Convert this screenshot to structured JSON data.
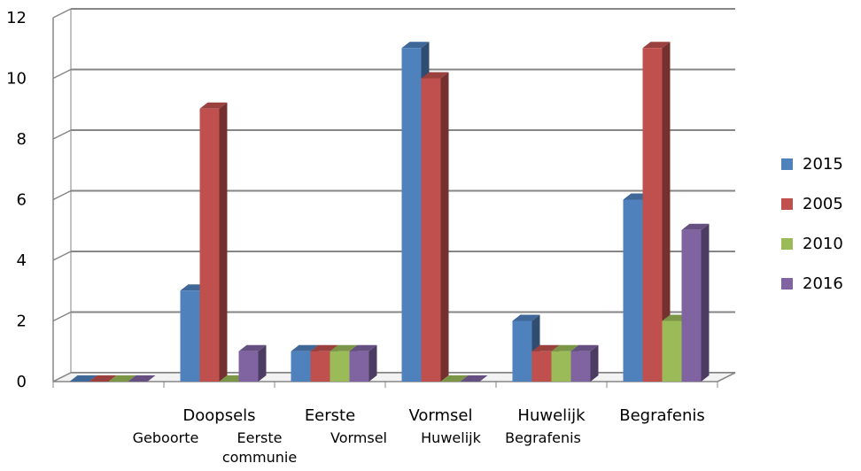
{
  "chart_data": {
    "type": "bar",
    "title": "",
    "xlabel": "",
    "ylabel": "",
    "ylim": [
      0,
      12
    ],
    "yticks": [
      "0",
      "2",
      "4",
      "6",
      "8",
      "10",
      "12"
    ],
    "grid": true,
    "legend_position": "right",
    "categories": [
      "",
      "Doopsels",
      "Eerste",
      "Vormsel",
      "Huwelijk",
      "Begrafenis"
    ],
    "secondary_categories": [
      "Geboorte",
      "Eerste communie",
      "Vormsel",
      "Huwelijk",
      "Begrafenis"
    ],
    "series": [
      {
        "name": "2015",
        "color": "#4f81bd",
        "values": [
          0,
          3,
          1,
          11,
          2,
          6
        ]
      },
      {
        "name": "2005",
        "color": "#c0504d",
        "values": [
          0,
          9,
          1,
          10,
          1,
          11
        ]
      },
      {
        "name": "2010",
        "color": "#9bbb59",
        "values": [
          0,
          0,
          1,
          0,
          1,
          2
        ]
      },
      {
        "name": "2016",
        "color": "#8064a2",
        "values": [
          0,
          1,
          1,
          0,
          1,
          5
        ]
      }
    ]
  }
}
